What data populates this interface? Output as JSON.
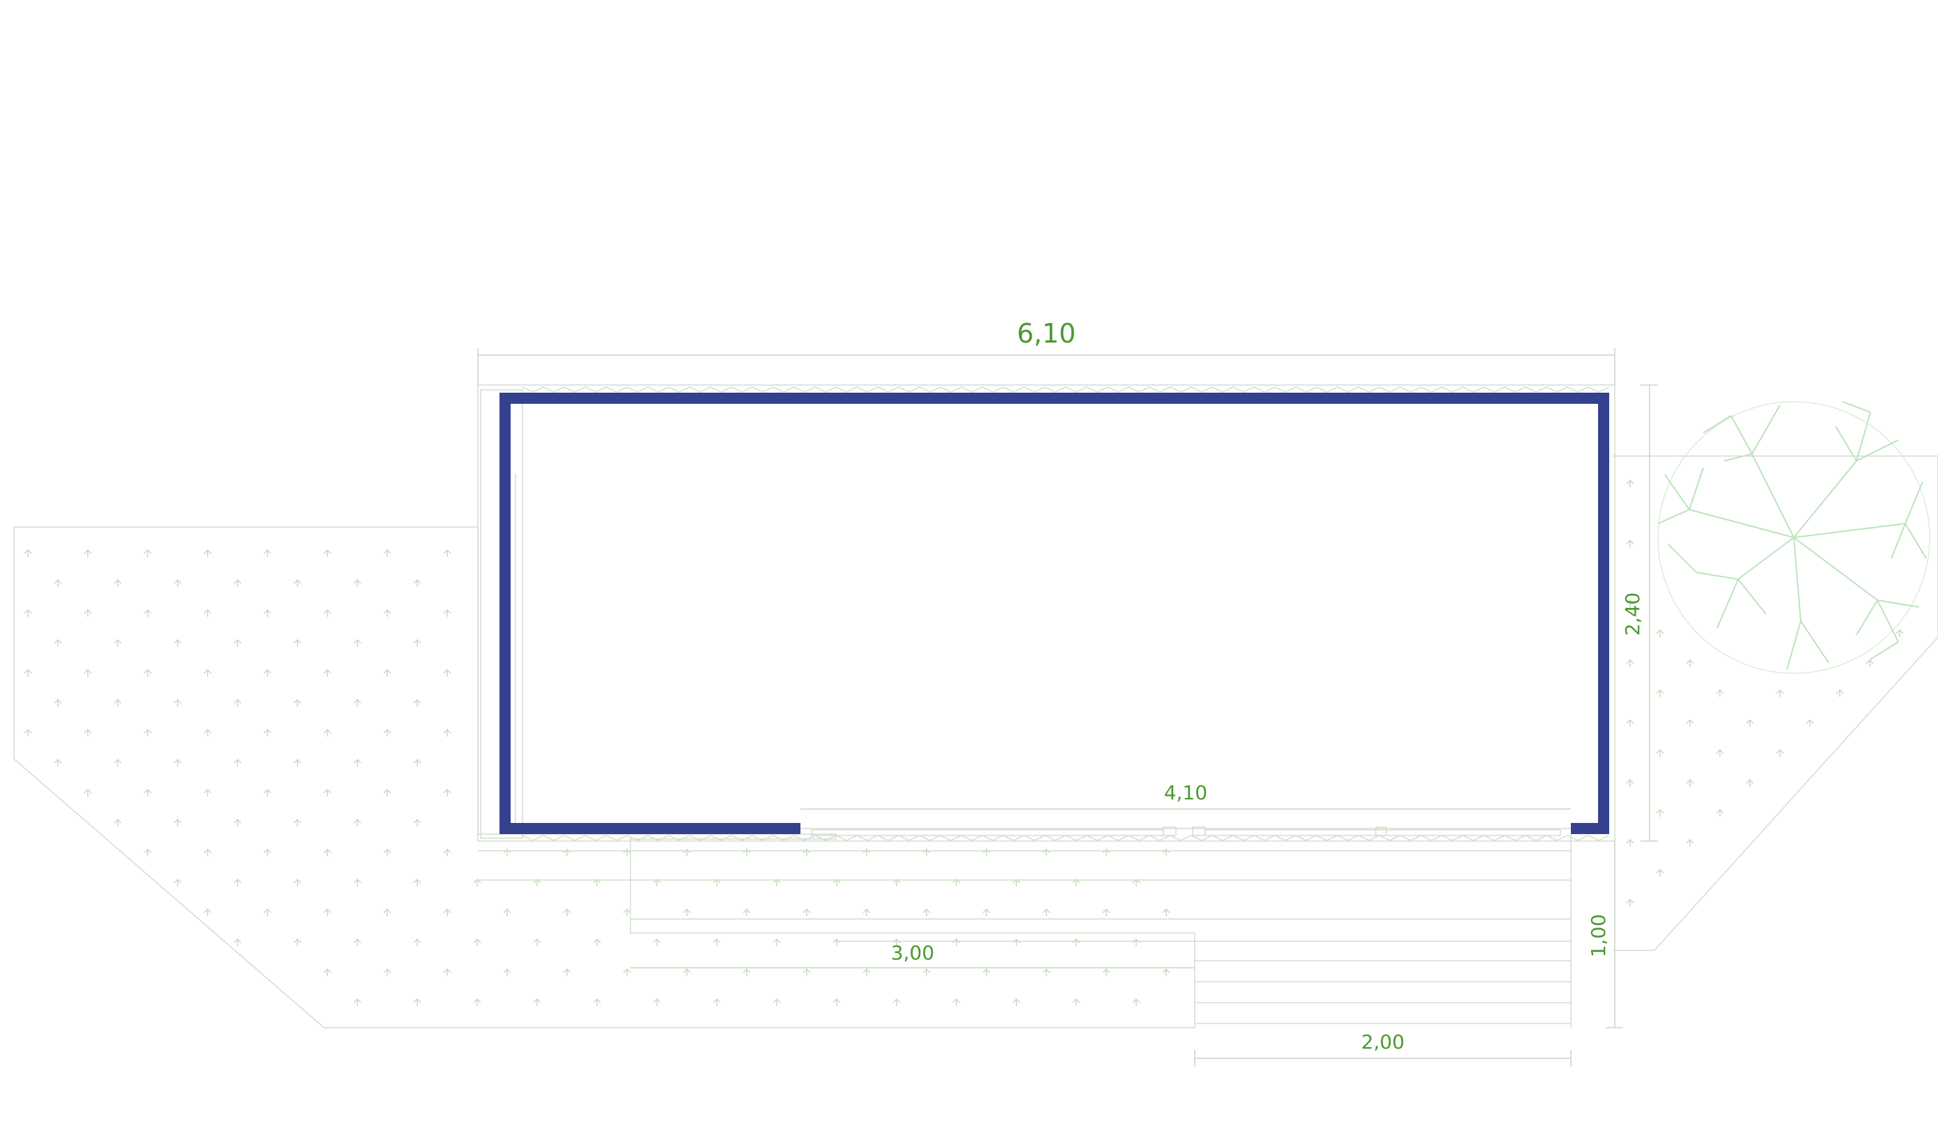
{
  "colors": {
    "wall": "#34418f",
    "dimension_text": "#4a9a2e",
    "outline": "#d3ddd0",
    "grass_symbol": "#bfe0b8",
    "tree": "#bde3bd"
  },
  "dimensions": {
    "total_width": "6,10",
    "depth": "2,40",
    "opening_width": "4,10",
    "deck_depth": "1,00",
    "step_length": "3,00",
    "stair_width": "2,00"
  },
  "symbols": {
    "vegetation": "tree-icon",
    "ground": "grass-hatch"
  }
}
